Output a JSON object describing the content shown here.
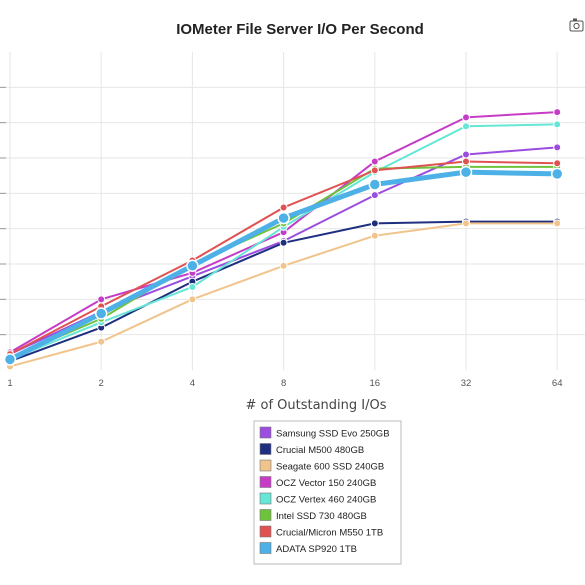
{
  "chart_data": {
    "type": "line",
    "title": "IOMeter File Server I/O Per Second",
    "xlabel": "# of Outstanding I/Os",
    "ylabel": "",
    "x": [
      "1",
      "2",
      "4",
      "8",
      "16",
      "32",
      "64"
    ],
    "y_gridlines": [
      1,
      2,
      3,
      4,
      5,
      6,
      7,
      8
    ],
    "ylim": [
      0,
      9
    ],
    "grid": true,
    "legend_position": "bottom-center",
    "series": [
      {
        "name": "Samsung SSD Evo 250GB",
        "color": "#9b4de0",
        "width": 2,
        "values": [
          0.45,
          1.65,
          2.65,
          3.65,
          4.95,
          6.1,
          6.3
        ]
      },
      {
        "name": "Crucial M500 480GB",
        "color": "#1f2f80",
        "width": 2,
        "values": [
          0.25,
          1.2,
          2.5,
          3.6,
          4.15,
          4.2,
          4.2
        ]
      },
      {
        "name": "Seagate 600 SSD 240GB",
        "color": "#f0c48c",
        "width": 2,
        "values": [
          0.1,
          0.8,
          2.0,
          2.95,
          3.8,
          4.15,
          4.15
        ]
      },
      {
        "name": "OCZ Vector 150 240GB",
        "color": "#c63cc6",
        "width": 2,
        "values": [
          0.5,
          2.0,
          2.75,
          3.9,
          5.9,
          7.15,
          7.3
        ]
      },
      {
        "name": "OCZ Vertex 460 240GB",
        "color": "#66e6d6",
        "width": 2,
        "values": [
          0.3,
          1.35,
          2.35,
          4.05,
          5.6,
          6.9,
          6.95
        ]
      },
      {
        "name": "Intel SSD 730 480GB",
        "color": "#6fc23b",
        "width": 2,
        "values": [
          0.35,
          1.45,
          3.0,
          4.15,
          5.7,
          5.75,
          5.75
        ]
      },
      {
        "name": "Crucial/Micron M550 1TB",
        "color": "#e05252",
        "width": 2,
        "values": [
          0.45,
          1.8,
          3.1,
          4.6,
          5.65,
          5.9,
          5.85
        ]
      },
      {
        "name": "ADATA SP920 1TB",
        "color": "#4db0e6",
        "width": 5,
        "values": [
          0.3,
          1.6,
          2.95,
          4.3,
          5.25,
          5.6,
          5.55
        ]
      }
    ]
  }
}
